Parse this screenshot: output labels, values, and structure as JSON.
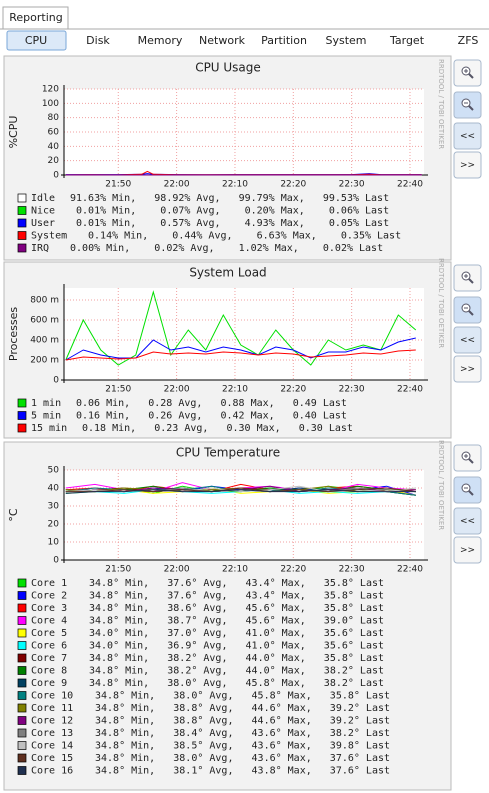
{
  "tabs": [
    "Reporting"
  ],
  "subtabs": [
    "CPU",
    "Disk",
    "Memory",
    "Network",
    "Partition",
    "System",
    "Target",
    "ZFS"
  ],
  "buttons": {
    "back": "<<",
    "forward": ">>"
  },
  "chart_data": [
    {
      "type": "line",
      "title": "CPU Usage",
      "y_label": "%CPU",
      "watermark": "RRDTOOL / TOBI OETIKER",
      "grid": true,
      "xlim": [
        40.7,
        102.4
      ],
      "ylim": [
        0,
        120
      ],
      "xticks": [
        {
          "value": 50,
          "label": "21:50"
        },
        {
          "value": 60,
          "label": "22:00"
        },
        {
          "value": 70,
          "label": "22:10"
        },
        {
          "value": 80,
          "label": "22:20"
        },
        {
          "value": 90,
          "label": "22:30"
        },
        {
          "value": 100,
          "label": "22:40"
        }
      ],
      "yticks": [
        0,
        20,
        40,
        60,
        80,
        100,
        120
      ],
      "x": [
        41,
        45,
        50,
        54,
        55,
        56,
        60,
        65,
        70,
        75,
        80,
        85,
        90,
        93,
        95,
        100,
        102
      ],
      "series": [
        {
          "name": "Idle",
          "color": "#ffffff",
          "stats": "91.63% Min,   98.92% Avg,   99.79% Max,   99.53% Last"
        },
        {
          "name": "Nice",
          "color": "#00e000",
          "stats": " 0.01% Min,    0.07% Avg,    0.20% Max,    0.06% Last",
          "values": [
            0,
            0,
            0,
            0,
            0,
            0,
            0,
            0,
            0,
            0,
            0,
            0,
            0,
            0,
            0,
            0,
            0
          ]
        },
        {
          "name": "User",
          "color": "#0000ff",
          "stats": " 0.01% Min,    0.57% Avg,    4.93% Max,    0.05% Last",
          "values": [
            0.5,
            0.6,
            0.5,
            1,
            2,
            1,
            0.5,
            0.4,
            0.6,
            0.5,
            0.5,
            0.6,
            0.5,
            2,
            0.6,
            0.5,
            0.5
          ]
        },
        {
          "name": "System",
          "color": "#ff0000",
          "stats": " 0.14% Min,    0.44% Avg,    6.63% Max,    0.35% Last",
          "values": [
            0.2,
            0.3,
            0.2,
            1,
            5,
            1,
            0.3,
            0.3,
            0.4,
            0.3,
            0.3,
            0.4,
            0.3,
            1,
            0.3,
            0.3,
            0.3
          ]
        },
        {
          "name": "IRQ",
          "color": "#800080",
          "stats": " 0.00% Min,    0.02% Avg,    1.02% Max,    0.02% Last",
          "values": [
            0,
            0,
            0,
            0,
            0,
            0,
            0,
            0,
            0,
            0,
            0,
            0,
            0,
            0,
            0,
            0,
            0
          ]
        }
      ]
    },
    {
      "type": "line",
      "title": "System Load",
      "y_label": "Processes",
      "watermark": "RRDTOOL / TOBI OETIKER",
      "grid": true,
      "xlim": [
        40.7,
        102.4
      ],
      "ylim": [
        0,
        920
      ],
      "xticks": [
        {
          "value": 50,
          "label": "21:50"
        },
        {
          "value": 60,
          "label": "22:00"
        },
        {
          "value": 70,
          "label": "22:10"
        },
        {
          "value": 80,
          "label": "22:20"
        },
        {
          "value": 90,
          "label": "22:30"
        },
        {
          "value": 100,
          "label": "22:40"
        }
      ],
      "yticks": [
        0,
        {
          "value": 200,
          "label": "200 m"
        },
        {
          "value": 400,
          "label": "400 m"
        },
        {
          "value": 600,
          "label": "600 m"
        },
        {
          "value": 800,
          "label": "800 m"
        }
      ],
      "x": [
        41,
        44,
        47,
        50,
        53,
        56,
        59,
        62,
        65,
        68,
        71,
        74,
        77,
        80,
        83,
        86,
        89,
        92,
        95,
        98,
        101
      ],
      "series": [
        {
          "name": "1 min",
          "color": "#00e000",
          "stats": "0.06 Min,   0.28 Avg,   0.88 Max,   0.49 Last",
          "values": [
            200,
            600,
            300,
            150,
            250,
            880,
            250,
            500,
            300,
            650,
            350,
            250,
            500,
            300,
            150,
            400,
            300,
            350,
            300,
            650,
            500
          ]
        },
        {
          "name": "5 min",
          "color": "#0000ff",
          "stats": "0.16 Min,   0.26 Avg,   0.42 Max,   0.40 Last",
          "values": [
            200,
            300,
            250,
            220,
            220,
            400,
            300,
            330,
            280,
            330,
            300,
            250,
            330,
            300,
            220,
            280,
            280,
            330,
            300,
            380,
            420
          ]
        },
        {
          "name": "15 min",
          "color": "#ff0000",
          "stats": "0.18 Min,   0.23 Avg,   0.30 Max,   0.30 Last",
          "values": [
            200,
            230,
            220,
            210,
            220,
            280,
            260,
            270,
            260,
            280,
            270,
            250,
            270,
            260,
            230,
            240,
            250,
            270,
            260,
            290,
            300
          ]
        }
      ]
    },
    {
      "type": "line",
      "title": "CPU Temperature",
      "y_label": "°C",
      "watermark": "RRDTOOL / TOBI OETIKER",
      "grid": true,
      "xlim": [
        40.7,
        102.4
      ],
      "ylim": [
        0,
        50
      ],
      "xticks": [
        {
          "value": 50,
          "label": "21:50"
        },
        {
          "value": 60,
          "label": "22:00"
        },
        {
          "value": 70,
          "label": "22:10"
        },
        {
          "value": 80,
          "label": "22:20"
        },
        {
          "value": 90,
          "label": "22:30"
        },
        {
          "value": 100,
          "label": "22:40"
        }
      ],
      "yticks": [
        0,
        10,
        20,
        30,
        40,
        50
      ],
      "x": [
        41,
        46,
        51,
        56,
        61,
        66,
        71,
        76,
        81,
        86,
        91,
        96,
        101
      ],
      "series": [
        {
          "name": "Core 1",
          "color": "#00e000",
          "stats": "34.8° Min,   37.6° Avg,   43.4° Max,   35.8° Last",
          "values": [
            39,
            38,
            40,
            37,
            41,
            38,
            39,
            40,
            38,
            41,
            39,
            38,
            36
          ]
        },
        {
          "name": "Core 2",
          "color": "#0000ff",
          "stats": "34.8° Min,   37.6° Avg,   43.4° Max,   35.8° Last",
          "values": [
            38,
            39,
            38,
            40,
            38,
            41,
            39,
            38,
            40,
            38,
            39,
            41,
            36
          ]
        },
        {
          "name": "Core 3",
          "color": "#ff0000",
          "stats": "34.8° Min,   38.6° Avg,   45.6° Max,   35.8° Last",
          "values": [
            39,
            40,
            38,
            41,
            39,
            38,
            42,
            39,
            38,
            40,
            41,
            39,
            36
          ]
        },
        {
          "name": "Core 4",
          "color": "#ff00ff",
          "stats": "34.8° Min,   38.7° Avg,   45.6° Max,   39.0° Last",
          "values": [
            40,
            42,
            39,
            38,
            43,
            39,
            40,
            41,
            39,
            38,
            42,
            40,
            39
          ]
        },
        {
          "name": "Core 5",
          "color": "#ffff00",
          "stats": "34.0° Min,   37.0° Avg,   41.0° Max,   35.6° Last",
          "values": [
            37,
            38,
            39,
            37,
            38,
            40,
            37,
            38,
            39,
            37,
            38,
            39,
            36
          ]
        },
        {
          "name": "Core 6",
          "color": "#00ffff",
          "stats": "34.0° Min,   36.9° Avg,   41.0° Max,   35.6° Last",
          "values": [
            37,
            38,
            37,
            39,
            38,
            37,
            38,
            39,
            37,
            38,
            37,
            38,
            36
          ]
        },
        {
          "name": "Core 7",
          "color": "#800000",
          "stats": "34.8° Min,   38.2° Avg,   44.0° Max,   35.8° Last",
          "values": [
            38,
            39,
            40,
            38,
            39,
            38,
            40,
            39,
            38,
            39,
            40,
            38,
            36
          ]
        },
        {
          "name": "Core 8",
          "color": "#008000",
          "stats": "34.8° Min,   38.2° Avg,   44.0° Max,   38.2° Last",
          "values": [
            39,
            38,
            39,
            41,
            38,
            39,
            38,
            40,
            39,
            38,
            41,
            39,
            38
          ]
        },
        {
          "name": "Core 9",
          "color": "#004060",
          "stats": "34.8° Min,   38.0° Avg,   45.8° Max,   38.2° Last",
          "values": [
            38,
            39,
            38,
            39,
            40,
            38,
            39,
            38,
            40,
            39,
            38,
            39,
            38
          ]
        },
        {
          "name": "Core 10",
          "color": "#008080",
          "stats": "34.8° Min,   38.0° Avg,   45.8° Max,   35.8° Last",
          "values": [
            38,
            40,
            39,
            38,
            39,
            41,
            38,
            39,
            38,
            40,
            39,
            38,
            36
          ]
        },
        {
          "name": "Core 11",
          "color": "#808000",
          "stats": "34.8° Min,   38.8° Avg,   44.6° Max,   39.2° Last",
          "values": [
            39,
            38,
            40,
            39,
            38,
            39,
            40,
            38,
            39,
            41,
            38,
            39,
            39
          ]
        },
        {
          "name": "Core 12",
          "color": "#800080",
          "stats": "34.8° Min,   38.8° Avg,   44.6° Max,   39.2° Last",
          "values": [
            38,
            39,
            38,
            40,
            39,
            38,
            39,
            41,
            38,
            39,
            40,
            38,
            39
          ]
        },
        {
          "name": "Core 13",
          "color": "#808080",
          "stats": "34.8° Min,   38.4° Avg,   43.6° Max,   38.2° Last",
          "values": [
            38,
            38,
            39,
            38,
            40,
            38,
            39,
            38,
            39,
            38,
            40,
            39,
            38
          ]
        },
        {
          "name": "Core 14",
          "color": "#c0c0c0",
          "stats": "34.8° Min,   38.5° Avg,   43.6° Max,   39.8° Last",
          "values": [
            38,
            39,
            38,
            39,
            38,
            40,
            38,
            39,
            41,
            38,
            39,
            38,
            40
          ]
        },
        {
          "name": "Core 15",
          "color": "#603020",
          "stats": "34.8° Min,   38.0° Avg,   43.6° Max,   37.6° Last",
          "values": [
            38,
            38,
            39,
            38,
            39,
            38,
            40,
            38,
            39,
            38,
            39,
            40,
            38
          ]
        },
        {
          "name": "Core 16",
          "color": "#203050",
          "stats": "34.8° Min,   38.1° Avg,   43.8° Max,   37.6° Last",
          "values": [
            37,
            38,
            38,
            39,
            38,
            38,
            39,
            38,
            38,
            39,
            38,
            38,
            38
          ]
        }
      ]
    }
  ]
}
